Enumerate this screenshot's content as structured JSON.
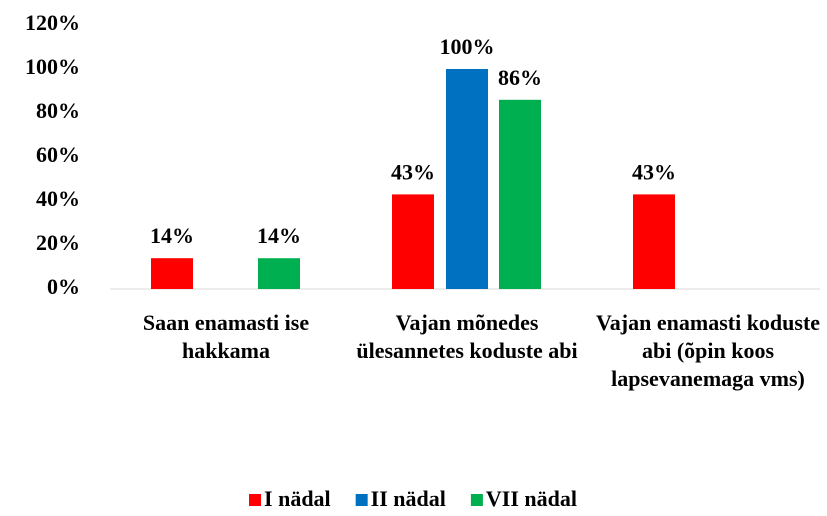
{
  "chart_data": {
    "type": "bar",
    "categories": [
      "Saan enamasti ise hakkama",
      "Vajan mõnedes ülesannetes koduste abi",
      "Vajan enamasti koduste abi (õpin koos lapsevanemaga vms)"
    ],
    "series": [
      {
        "name": "I nädal",
        "color": "#ff0000",
        "values": [
          14,
          43,
          43
        ],
        "value_labels": [
          "14%",
          "43%",
          "43%"
        ]
      },
      {
        "name": "II nädal",
        "color": "#0070c0",
        "values": [
          null,
          100,
          null
        ],
        "value_labels": [
          null,
          "100%",
          null
        ]
      },
      {
        "name": "VII nädal",
        "color": "#00b050",
        "values": [
          14,
          86,
          null
        ],
        "value_labels": [
          "14%",
          "86%",
          null
        ]
      }
    ],
    "ylim": [
      0,
      120
    ],
    "yticks": [
      {
        "value": 0,
        "label": "0%"
      },
      {
        "value": 20,
        "label": "20%"
      },
      {
        "value": 40,
        "label": "40%"
      },
      {
        "value": 60,
        "label": "60%"
      },
      {
        "value": 80,
        "label": "80%"
      },
      {
        "value": 100,
        "label": "100%"
      },
      {
        "value": 120,
        "label": "120%"
      }
    ],
    "grid": false,
    "legend": "bottom"
  }
}
